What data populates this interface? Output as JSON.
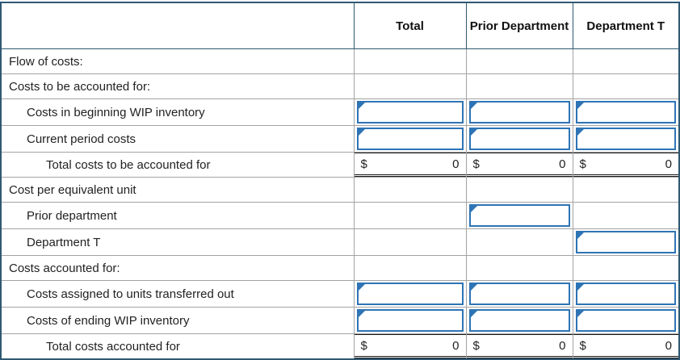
{
  "table": {
    "header": {
      "total": "Total",
      "prior_department": "Prior Department",
      "department_t": "Department T"
    },
    "rows": [
      {
        "label": "Flow of costs:"
      },
      {
        "label": "Costs to be accounted for:"
      },
      {
        "label": "Costs in beginning WIP inventory"
      },
      {
        "label": "Current period costs"
      },
      {
        "label": "Total costs to be accounted for",
        "dollar": "$",
        "values": {
          "total": "0",
          "prior_department": "0",
          "department_t": "0"
        }
      },
      {
        "label": "Cost per equivalent unit"
      },
      {
        "label": "Prior department"
      },
      {
        "label": "Department T"
      },
      {
        "label": "Costs accounted for:"
      },
      {
        "label": "Costs assigned to units transferred out"
      },
      {
        "label": "Costs of ending WIP inventory"
      },
      {
        "label": "Total costs accounted for",
        "dollar": "$",
        "values": {
          "total": "0",
          "prior_department": "0",
          "department_t": "0"
        }
      }
    ],
    "colors": {
      "border_dark": "#2f5872",
      "grid_gray": "#a3a3a3",
      "input_blue": "#2e74b5"
    }
  }
}
